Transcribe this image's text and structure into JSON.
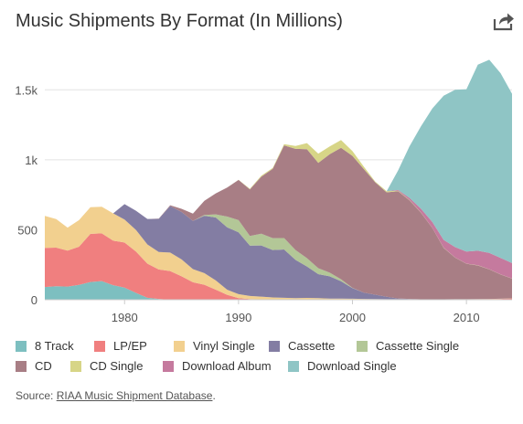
{
  "header": {
    "title": "Music Shipments By Format (In Millions)",
    "share_icon": "share-arrow-icon"
  },
  "chart_data": {
    "type": "area",
    "stacked": true,
    "title": "Music Shipments By Format (In Millions)",
    "xlabel": "",
    "ylabel": "",
    "xlim": [
      1973,
      2014
    ],
    "ylim": [
      0,
      1750
    ],
    "x_ticks": [
      {
        "value": 1980,
        "label": "1980"
      },
      {
        "value": 1990,
        "label": "1990"
      },
      {
        "value": 2000,
        "label": "2000"
      },
      {
        "value": 2010,
        "label": "2010"
      }
    ],
    "y_ticks": [
      {
        "value": 0,
        "label": "0"
      },
      {
        "value": 500,
        "label": "500"
      },
      {
        "value": 1000,
        "label": "1k"
      },
      {
        "value": 1500,
        "label": "1.5k"
      }
    ],
    "grid": true,
    "legend_position": "bottom",
    "x": [
      1973,
      1974,
      1975,
      1976,
      1977,
      1978,
      1979,
      1980,
      1981,
      1982,
      1983,
      1984,
      1985,
      1986,
      1987,
      1988,
      1989,
      1990,
      1991,
      1992,
      1993,
      1994,
      1995,
      1996,
      1997,
      1998,
      1999,
      2000,
      2001,
      2002,
      2003,
      2004,
      2005,
      2006,
      2007,
      2008,
      2009,
      2010,
      2011,
      2012,
      2013,
      2014
    ],
    "series": [
      {
        "name": "8 Track",
        "color": "#7dbfc0",
        "values": [
          91,
          96,
          94,
          106,
          127,
          133,
          104,
          86,
          49,
          14,
          6,
          0,
          0,
          0,
          0,
          0,
          0,
          0,
          0,
          0,
          0,
          0,
          0,
          0,
          0,
          0,
          0,
          0,
          0,
          0,
          0,
          0,
          0,
          0,
          0,
          0,
          0,
          0,
          0,
          0,
          0,
          0
        ]
      },
      {
        "name": "LP/EP",
        "color": "#f07f7f",
        "values": [
          280,
          276,
          257,
          273,
          344,
          341,
          318,
          323,
          296,
          244,
          210,
          205,
          167,
          125,
          107,
          72,
          35,
          12,
          5,
          2,
          1,
          2,
          2,
          3,
          3,
          3,
          3,
          2,
          2,
          2,
          1,
          1,
          1,
          1,
          1,
          2,
          3,
          3,
          4,
          5,
          6,
          9
        ]
      },
      {
        "name": "Vinyl Single",
        "color": "#f2d08f",
        "values": [
          228,
          204,
          164,
          190,
          190,
          190,
          195,
          164,
          154,
          137,
          125,
          132,
          121,
          94,
          83,
          66,
          37,
          28,
          22,
          20,
          15,
          12,
          10,
          10,
          8,
          5,
          5,
          5,
          4,
          3,
          3,
          3,
          3,
          1,
          1,
          1,
          1,
          1,
          1,
          1,
          1,
          1
        ]
      },
      {
        "name": "Cassette",
        "color": "#837da3",
        "values": [
          0,
          0,
          0,
          0,
          0,
          0,
          0,
          110,
          137,
          182,
          237,
          332,
          339,
          344,
          410,
          450,
          446,
          442,
          360,
          366,
          339,
          345,
          273,
          225,
          172,
          159,
          124,
          76,
          45,
          31,
          17,
          5,
          2,
          1,
          0,
          0,
          0,
          0,
          0,
          0,
          0,
          0
        ]
      },
      {
        "name": "Cassette Single",
        "color": "#b3c797",
        "values": [
          0,
          0,
          0,
          0,
          0,
          0,
          0,
          0,
          0,
          0,
          0,
          0,
          0,
          0,
          5,
          22,
          76,
          87,
          69,
          84,
          85,
          82,
          70,
          59,
          42,
          26,
          14,
          2,
          0,
          0,
          0,
          0,
          0,
          0,
          0,
          0,
          0,
          0,
          0,
          0,
          0,
          0
        ]
      },
      {
        "name": "CD",
        "color": "#a87e85",
        "values": [
          0,
          0,
          0,
          0,
          0,
          0,
          0,
          0,
          0,
          0,
          1,
          6,
          23,
          53,
          102,
          150,
          207,
          287,
          333,
          407,
          495,
          662,
          723,
          779,
          753,
          847,
          939,
          943,
          882,
          803,
          746,
          767,
          705,
          620,
          511,
          368,
          297,
          253,
          240,
          211,
          173,
          141
        ]
      },
      {
        "name": "CD Single",
        "color": "#d7d587",
        "values": [
          0,
          0,
          0,
          0,
          0,
          0,
          0,
          0,
          0,
          0,
          0,
          0,
          0,
          0,
          0,
          0,
          0,
          1,
          4,
          7,
          7,
          9,
          21,
          43,
          66,
          56,
          56,
          34,
          17,
          5,
          8,
          3,
          3,
          1,
          1,
          1,
          1,
          1,
          1,
          1,
          1,
          1
        ]
      },
      {
        "name": "Download Album",
        "color": "#c57a9e",
        "values": [
          0,
          0,
          0,
          0,
          0,
          0,
          0,
          0,
          0,
          0,
          0,
          0,
          0,
          0,
          0,
          0,
          0,
          0,
          0,
          0,
          0,
          0,
          0,
          0,
          0,
          0,
          0,
          0,
          0,
          0,
          0,
          5,
          14,
          28,
          42,
          56,
          74,
          86,
          104,
          117,
          118,
          110
        ]
      },
      {
        "name": "Download Single",
        "color": "#8fc5c5",
        "values": [
          0,
          0,
          0,
          0,
          0,
          0,
          0,
          0,
          0,
          0,
          0,
          0,
          0,
          0,
          0,
          0,
          0,
          0,
          0,
          0,
          0,
          0,
          0,
          0,
          0,
          0,
          0,
          0,
          0,
          0,
          0,
          140,
          367,
          586,
          810,
          1030,
          1124,
          1160,
          1330,
          1380,
          1320,
          1210
        ]
      }
    ]
  },
  "footer": {
    "source_prefix": "Source: ",
    "source_link": "RIAA Music Shipment Database",
    "source_suffix": "."
  }
}
